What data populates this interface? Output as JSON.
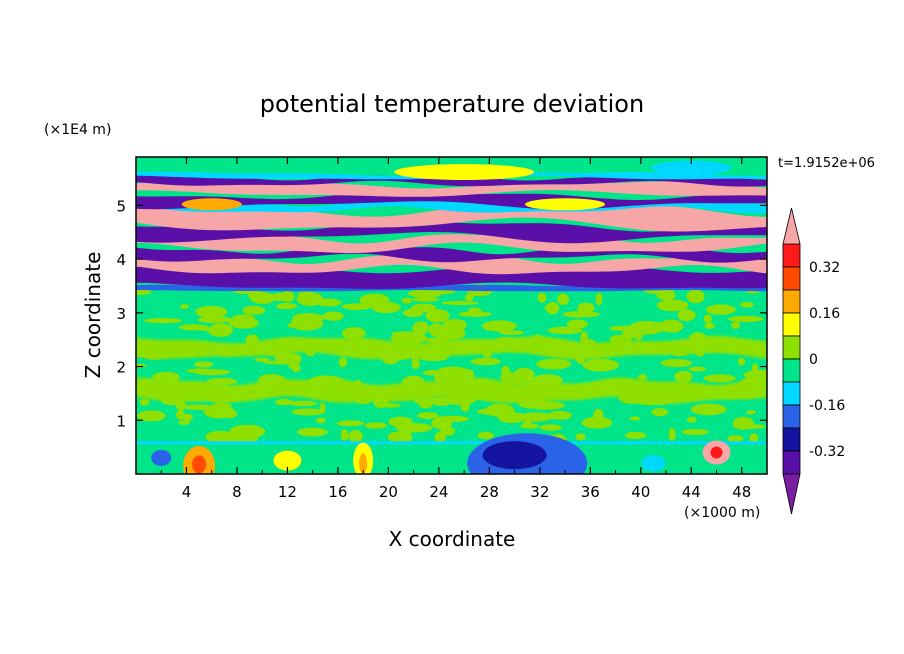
{
  "chart_data": {
    "type": "heatmap",
    "title": "potential temperature deviation",
    "xlabel": "X coordinate",
    "ylabel": "Z coordinate",
    "x_unit": "(×1000 m)",
    "y_unit": "(×1E4 m)",
    "time_label": "t=1.9152e+06",
    "xlim": [
      0,
      50
    ],
    "ylim": [
      0,
      5.9
    ],
    "x_ticks": [
      4,
      8,
      12,
      16,
      20,
      24,
      28,
      32,
      36,
      40,
      44,
      48
    ],
    "y_ticks": [
      1,
      2,
      3,
      4,
      5
    ],
    "x_tick_labels": [
      "4",
      "8",
      "12",
      "16",
      "20",
      "24",
      "28",
      "32",
      "36",
      "40",
      "44",
      "48"
    ],
    "y_tick_labels": [
      "1",
      "2",
      "3",
      "4",
      "5"
    ],
    "colorbar": {
      "levels": [
        -0.4,
        -0.32,
        -0.24,
        -0.16,
        -0.08,
        0,
        0.08,
        0.16,
        0.24,
        0.32,
        0.4
      ],
      "colors": [
        "#7a1fa2",
        "#5a10a8",
        "#1414a0",
        "#2b63e8",
        "#00d8ff",
        "#00e58a",
        "#8fe000",
        "#ffff00",
        "#ffaa00",
        "#ff4a00",
        "#ff1a1a",
        "#f6a6a6"
      ],
      "tick_labels": [
        "0.32",
        "0.16",
        "0",
        "-0.16",
        "-0.32"
      ],
      "extend": "both"
    },
    "field_summary": [
      {
        "z_range": [
          5.6,
          5.9
        ],
        "x_range": [
          0,
          50
        ],
        "level": "0 to 0.08",
        "note": "green band with cyan and yellow patches"
      },
      {
        "z_range": [
          3.4,
          5.6
        ],
        "x_range": [
          0,
          50
        ],
        "level": "below -0.4 / above 0.4",
        "note": "alternating purple and pink horizontal layers"
      },
      {
        "z_range": [
          0.6,
          3.4
        ],
        "x_range": [
          0,
          50
        ],
        "level": "-0.08 to 0.08",
        "note": "mottled green / light green"
      },
      {
        "z_range": [
          0,
          0.6
        ],
        "x_range": [
          26,
          35
        ],
        "level": "-0.24 to -0.16",
        "note": "blue region near surface"
      },
      {
        "z_range": [
          0,
          0.4
        ],
        "x_range": [
          4,
          6
        ],
        "level": "0.24 to 0.32",
        "note": "orange/red patches near surface"
      }
    ]
  }
}
